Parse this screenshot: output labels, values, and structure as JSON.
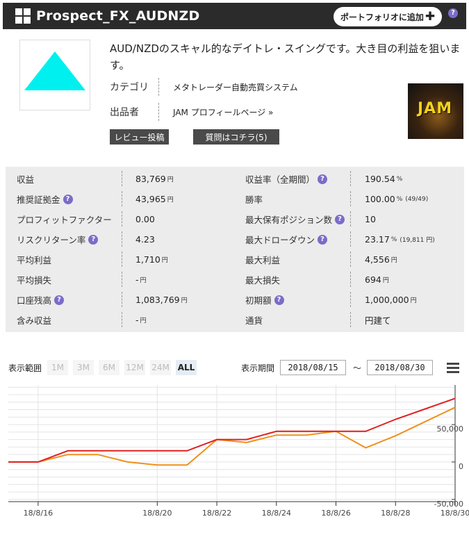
{
  "header": {
    "title": "Prospect_FX_AUDNZD",
    "portfolio_label": "ポートフォリオに追加",
    "help_glyph": "?"
  },
  "product": {
    "description": "AUD/NZDのスキャル的なデイトレ・スイングです。大き目の利益を狙います。",
    "category_label": "カテゴリ",
    "category_value": "メタトレーダー自動売買システム",
    "seller_label": "出品者",
    "seller_value": "JAM プロフィールページ »",
    "review_button": "レビュー投稿",
    "question_button": "質問はコチラ(5)",
    "seller_image_text": "JAM",
    "thumb_color": "#00f0f0"
  },
  "stats": [
    {
      "k1": "収益",
      "h1": false,
      "v1": "83,769",
      "u1": "円",
      "x1": "",
      "k2": "収益率（全期間）",
      "h2": true,
      "v2": "190.54",
      "u2": "%",
      "x2": ""
    },
    {
      "k1": "推奨証拠金",
      "h1": true,
      "v1": "43,965",
      "u1": "円",
      "x1": "",
      "k2": "勝率",
      "h2": false,
      "v2": "100.00",
      "u2": "%",
      "x2": "(49/49)"
    },
    {
      "k1": "プロフィットファクター",
      "h1": false,
      "v1": "0.00",
      "u1": "",
      "x1": "",
      "k2": "最大保有ポジション数",
      "h2": true,
      "v2": "10",
      "u2": "",
      "x2": ""
    },
    {
      "k1": "リスクリターン率",
      "h1": true,
      "v1": "4.23",
      "u1": "",
      "x1": "",
      "k2": "最大ドローダウン",
      "h2": true,
      "v2": "23.17",
      "u2": "%",
      "x2": "(19,811 円)"
    },
    {
      "k1": "平均利益",
      "h1": false,
      "v1": "1,710",
      "u1": "円",
      "x1": "",
      "k2": "最大利益",
      "h2": false,
      "v2": "4,556",
      "u2": "円",
      "x2": ""
    },
    {
      "k1": "平均損失",
      "h1": false,
      "v1": "-",
      "u1": "円",
      "x1": "",
      "k2": "最大損失",
      "h2": false,
      "v2": "694",
      "u2": "円",
      "x2": ""
    },
    {
      "k1": "口座残高",
      "h1": true,
      "v1": "1,083,769",
      "u1": "円",
      "x1": "",
      "k2": "初期額",
      "h2": true,
      "v2": "1,000,000",
      "u2": "円",
      "x2": ""
    },
    {
      "k1": "含み収益",
      "h1": false,
      "v1": "-",
      "u1": "円",
      "x1": "",
      "k2": "通貨",
      "h2": false,
      "v2": "円建て",
      "u2": "",
      "x2": ""
    }
  ],
  "controls": {
    "range_label": "表示範囲",
    "ranges": [
      "1M",
      "3M",
      "6M",
      "12M",
      "24M",
      "ALL"
    ],
    "active_range": "ALL",
    "period_label": "表示期間",
    "start_date": "2018/08/15",
    "tilde": "～",
    "end_date": "2018/08/30"
  },
  "chart_data": {
    "type": "line",
    "x": [
      "2018-08-15",
      "2018-08-16",
      "2018-08-17",
      "2018-08-18",
      "2018-08-19",
      "2018-08-20",
      "2018-08-21",
      "2018-08-22",
      "2018-08-23",
      "2018-08-24",
      "2018-08-25",
      "2018-08-26",
      "2018-08-27",
      "2018-08-28",
      "2018-08-29",
      "2018-08-30"
    ],
    "x_tick_labels": [
      "18/8/16",
      "18/8/20",
      "18/8/22",
      "18/8/24",
      "18/8/26",
      "18/8/28",
      "18/8/30"
    ],
    "x_tick_dates": [
      "2018-08-16",
      "2018-08-20",
      "2018-08-22",
      "2018-08-24",
      "2018-08-26",
      "2018-08-28",
      "2018-08-30"
    ],
    "y_tick_labels": [
      "50,000",
      "0",
      "-50,000"
    ],
    "y_tick_values": [
      50000,
      0,
      -50000
    ],
    "ylim": [
      -53000,
      103000
    ],
    "series": [
      {
        "color": "#e02020",
        "values": [
          0,
          0,
          15000,
          15000,
          15000,
          15000,
          15000,
          30000,
          30000,
          41000,
          41000,
          41000,
          41000,
          57000,
          71000,
          85000
        ]
      },
      {
        "color": "#f0901c",
        "values": [
          0,
          0,
          10000,
          10000,
          0,
          -4000,
          -4000,
          30000,
          26000,
          36000,
          36000,
          41000,
          19000,
          35000,
          54000,
          73000
        ]
      }
    ],
    "grid": true
  }
}
